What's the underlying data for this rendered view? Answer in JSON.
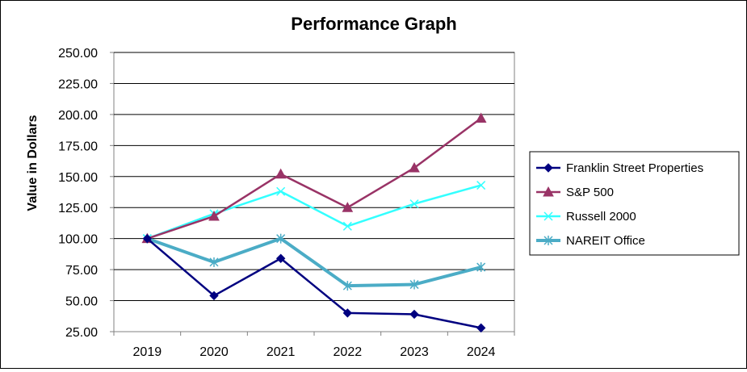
{
  "chart_data": {
    "type": "line",
    "title": "Performance Graph",
    "xlabel": "",
    "ylabel": "Value in Dollars",
    "categories": [
      "2019",
      "2020",
      "2021",
      "2022",
      "2023",
      "2024"
    ],
    "ylim": [
      25,
      250
    ],
    "yticks": [
      "25.00",
      "50.00",
      "75.00",
      "100.00",
      "125.00",
      "150.00",
      "175.00",
      "200.00",
      "225.00",
      "250.00"
    ],
    "grid": true,
    "legend_position": "right",
    "series": [
      {
        "name": "Franklin Street Properties",
        "values": [
          100,
          54,
          84,
          40,
          39,
          28
        ],
        "color": "#000080",
        "marker": "diamond",
        "line_width": 2.5
      },
      {
        "name": "S&P 500",
        "values": [
          100,
          118,
          152,
          125,
          157,
          197
        ],
        "color": "#993366",
        "marker": "triangle",
        "line_width": 2.5
      },
      {
        "name": "Russell 2000",
        "values": [
          100,
          120,
          138,
          110,
          128,
          143
        ],
        "color": "#33FFFF",
        "marker": "x",
        "line_width": 2.5
      },
      {
        "name": "NAREIT Office",
        "values": [
          100,
          81,
          100,
          62,
          63,
          77
        ],
        "color": "#4BACC6",
        "marker": "asterisk",
        "line_width": 4
      }
    ]
  }
}
